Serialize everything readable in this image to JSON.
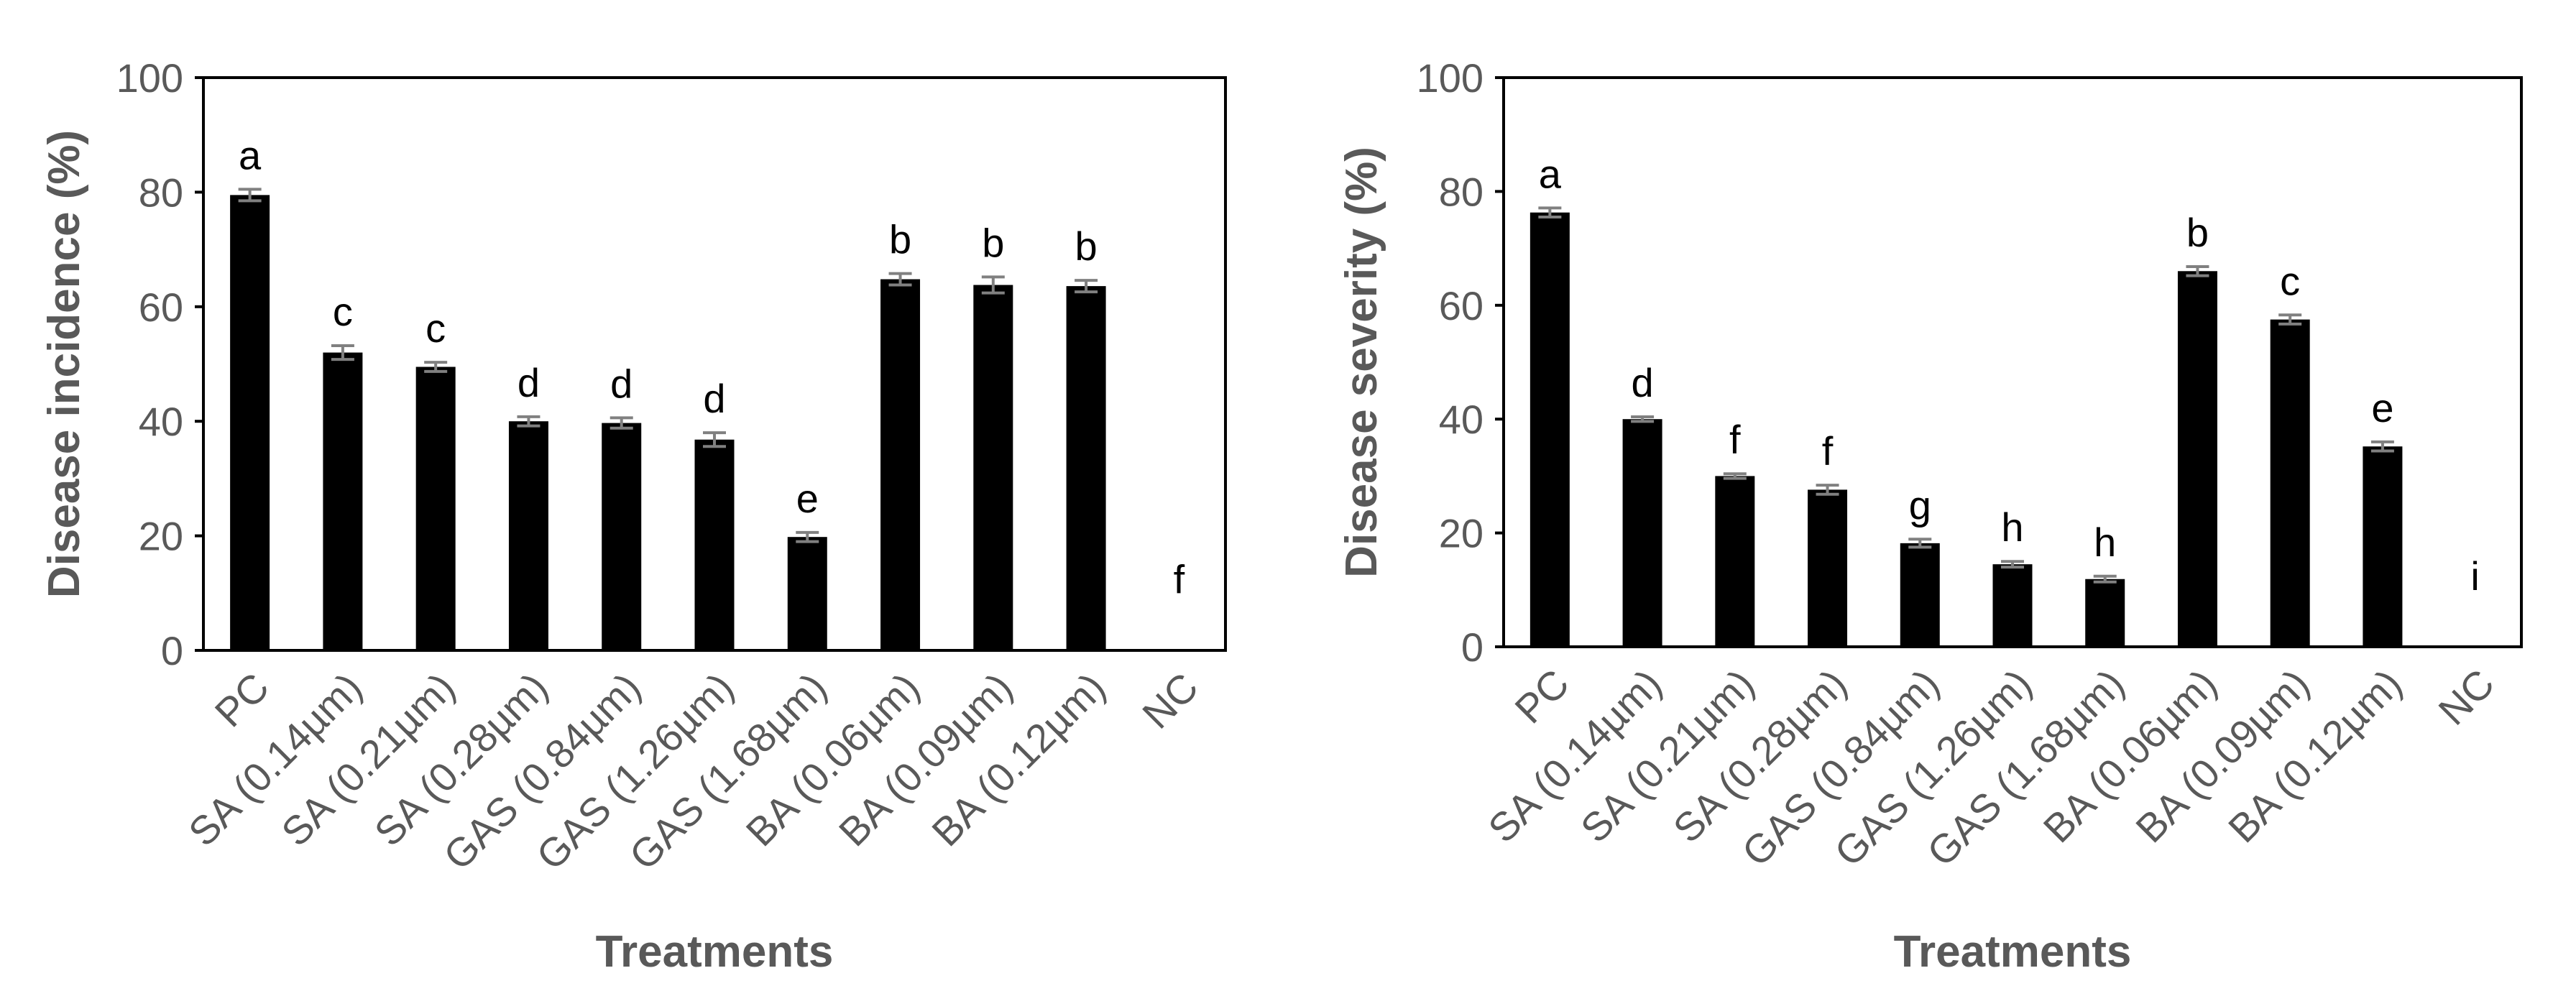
{
  "colors": {
    "bar": "#000000",
    "errorbar": "#808080",
    "axis": "#000000",
    "text": "#595959"
  },
  "chart_data": [
    {
      "type": "bar",
      "title": "",
      "xlabel": "Treatments",
      "ylabel": "Disease incidence (%)",
      "ylim": [
        0,
        100
      ],
      "yticks": [
        0,
        20,
        40,
        60,
        80,
        100
      ],
      "grid": false,
      "categories": [
        "PC",
        "SA (0.14µm)",
        "SA (0.21µm)",
        "SA (0.28µm)",
        "GAS (0.84µm)",
        "GAS (1.26µm)",
        "GAS (1.68µm)",
        "BA (0.06µm)",
        "BA (0.09µm)",
        "BA (0.12µm)",
        "NC"
      ],
      "values": [
        79.5,
        52.0,
        49.5,
        40.0,
        39.7,
        36.8,
        19.8,
        64.8,
        63.8,
        63.6,
        0
      ],
      "errors": [
        1.0,
        1.2,
        0.8,
        0.8,
        0.9,
        1.2,
        0.8,
        1.0,
        1.4,
        1.0,
        0
      ],
      "letters": [
        "a",
        "c",
        "c",
        "d",
        "d",
        "d",
        "e",
        "b",
        "b",
        "b",
        "f"
      ]
    },
    {
      "type": "bar",
      "title": "",
      "xlabel": "Treatments",
      "ylabel": "Disease severity (%)",
      "ylim": [
        0,
        100
      ],
      "yticks": [
        0,
        20,
        40,
        60,
        80,
        100
      ],
      "grid": false,
      "categories": [
        "PC",
        "SA (0.14µm)",
        "SA (0.21µm)",
        "SA (0.28µm)",
        "GAS (0.84µm)",
        "GAS (1.26µm)",
        "GAS (1.68µm)",
        "BA (0.06µm)",
        "BA (0.09µm)",
        "BA (0.12µm)",
        "NC"
      ],
      "values": [
        76.3,
        40.0,
        30.0,
        27.6,
        18.2,
        14.5,
        11.9,
        66.0,
        57.5,
        35.2,
        0
      ],
      "errors": [
        0.8,
        0.4,
        0.4,
        0.8,
        0.7,
        0.5,
        0.5,
        0.8,
        0.8,
        0.8,
        0
      ],
      "letters": [
        "a",
        "d",
        "f",
        "f",
        "g",
        "h",
        "h",
        "b",
        "c",
        "e",
        "i"
      ]
    }
  ]
}
